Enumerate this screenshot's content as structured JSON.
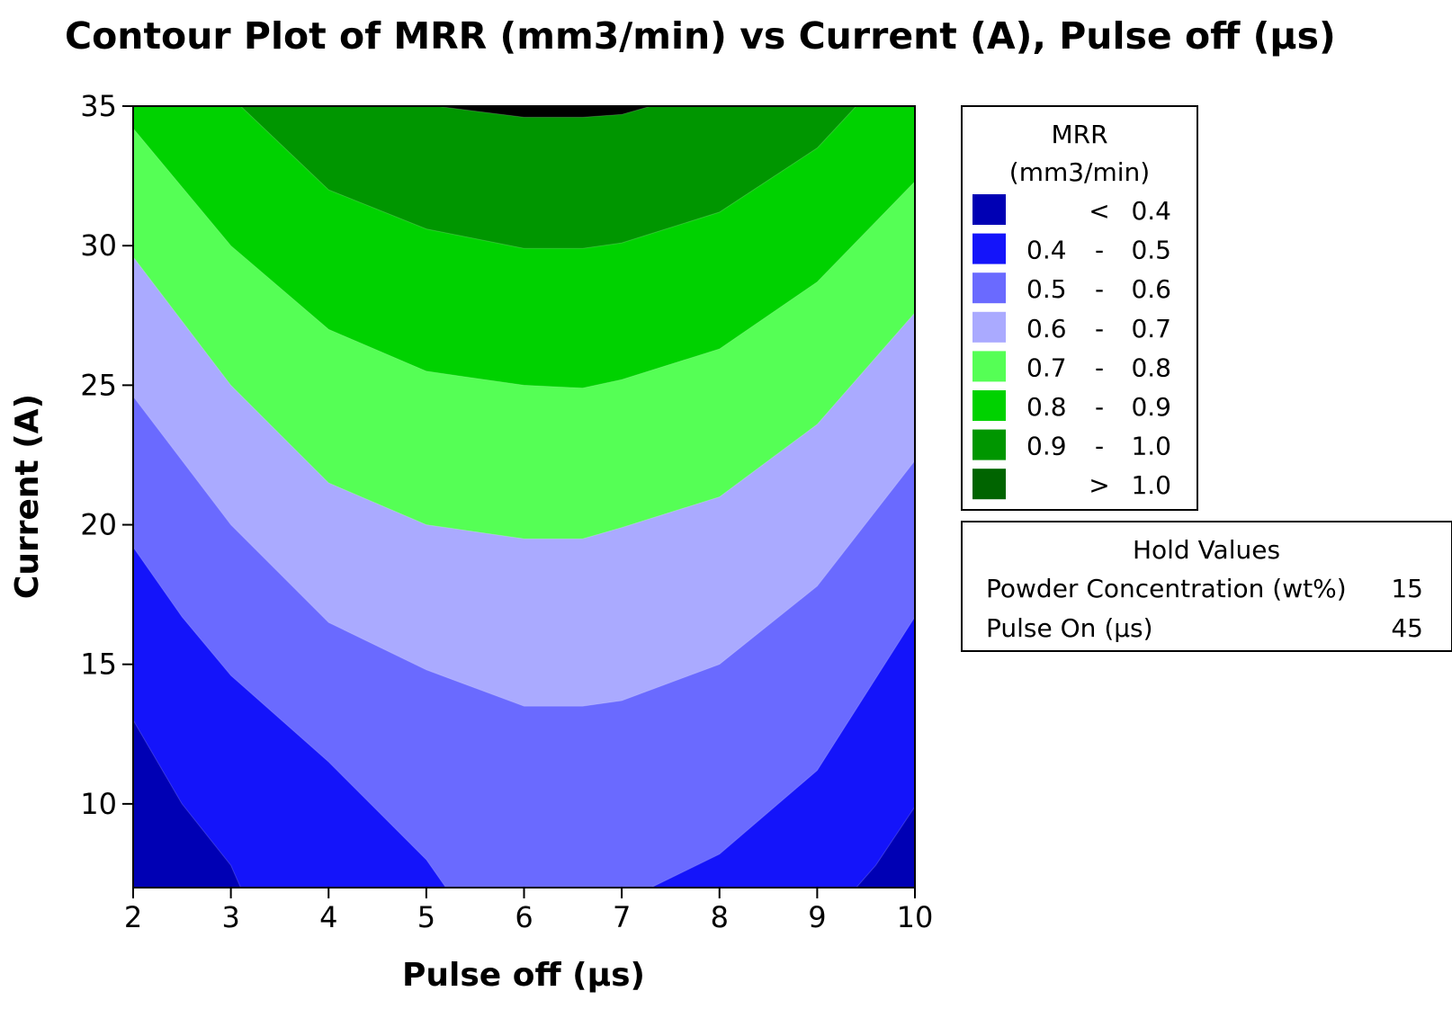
{
  "chart_data": {
    "type": "contour",
    "title": "Contour Plot of MRR (mm3/min) vs Current (A), Pulse off (µs)",
    "xlabel": "Pulse off (µs)",
    "ylabel": "Current (A)",
    "xlim": [
      2,
      10
    ],
    "ylim": [
      7,
      35
    ],
    "xticks": [
      "2",
      "3",
      "4",
      "5",
      "6",
      "7",
      "8",
      "9",
      "10"
    ],
    "yticks": [
      "10",
      "15",
      "20",
      "25",
      "30",
      "35"
    ],
    "legend": {
      "title_line1": "MRR",
      "title_line2": "(mm3/min)",
      "bands": [
        {
          "low": "",
          "sep": "<",
          "high": "0.4",
          "color": "#0000b4"
        },
        {
          "low": "0.4",
          "sep": "-",
          "high": "0.5",
          "color": "#1414fa"
        },
        {
          "low": "0.5",
          "sep": "-",
          "high": "0.6",
          "color": "#6a6aff"
        },
        {
          "low": "0.6",
          "sep": "-",
          "high": "0.7",
          "color": "#aaaaff"
        },
        {
          "low": "0.7",
          "sep": "-",
          "high": "0.8",
          "color": "#55ff55"
        },
        {
          "low": "0.8",
          "sep": "-",
          "high": "0.9",
          "color": "#00d200"
        },
        {
          "low": "0.9",
          "sep": "-",
          "high": "1.0",
          "color": "#009600"
        },
        {
          "low": "",
          "sep": ">",
          "high": "1.0",
          "color": "#006400"
        }
      ]
    },
    "contours": [
      {
        "level": 0.4,
        "x": [
          2.0,
          2.5,
          3.0,
          3.1
        ],
        "y": [
          13.0,
          10.0,
          7.8,
          7.0
        ]
      },
      {
        "level": 0.4,
        "x": [
          9.4,
          9.6,
          10.0
        ],
        "y": [
          7.0,
          7.8,
          9.9
        ]
      },
      {
        "level": 0.5,
        "x": [
          2.0,
          2.5,
          3.0,
          4.0,
          5.0,
          5.2
        ],
        "y": [
          19.2,
          16.7,
          14.6,
          11.5,
          8.0,
          7.0
        ]
      },
      {
        "level": 0.5,
        "x": [
          7.3,
          8.0,
          9.0,
          10.0
        ],
        "y": [
          7.0,
          8.2,
          11.2,
          16.7
        ]
      },
      {
        "level": 0.6,
        "x": [
          2.0,
          3.0,
          4.0,
          5.0,
          6.0,
          6.6,
          7.0,
          8.0,
          9.0,
          10.0
        ],
        "y": [
          24.6,
          20.0,
          16.5,
          14.8,
          13.5,
          13.5,
          13.7,
          15.0,
          17.8,
          22.3
        ]
      },
      {
        "level": 0.7,
        "x": [
          2.0,
          3.0,
          4.0,
          5.0,
          6.0,
          6.6,
          7.0,
          8.0,
          9.0,
          10.0
        ],
        "y": [
          29.6,
          25.0,
          21.5,
          20.0,
          19.5,
          19.5,
          19.9,
          21.0,
          23.6,
          27.6
        ]
      },
      {
        "level": 0.8,
        "x": [
          2.0,
          3.0,
          4.0,
          5.0,
          6.0,
          6.6,
          7.0,
          8.0,
          9.0,
          10.0
        ],
        "y": [
          34.2,
          30.0,
          27.0,
          25.5,
          25.0,
          24.9,
          25.2,
          26.3,
          28.7,
          32.3
        ]
      },
      {
        "level": 0.9,
        "x": [
          3.1,
          4.0,
          5.0,
          6.0,
          6.6,
          7.0,
          8.0,
          9.0,
          9.4
        ],
        "y": [
          35.0,
          32.0,
          30.6,
          29.9,
          29.9,
          30.1,
          31.2,
          33.5,
          35.0
        ]
      },
      {
        "level": 1.0,
        "x": [
          5.1,
          6.0,
          6.6,
          7.0,
          7.3
        ],
        "y": [
          35.0,
          34.6,
          34.6,
          34.7,
          35.0
        ]
      }
    ],
    "hold_values": {
      "title": "Hold Values",
      "rows": [
        {
          "label": "Powder Concentration (wt%)",
          "value": "15"
        },
        {
          "label": "Pulse On (µs)",
          "value": "45"
        }
      ]
    }
  }
}
